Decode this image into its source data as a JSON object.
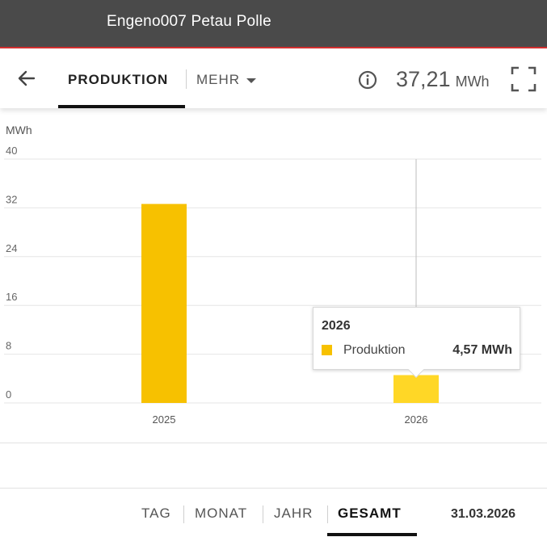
{
  "window": {
    "title": "Engeno007 Petau Polle"
  },
  "toolbar": {
    "back_icon": "arrow-left-icon",
    "tab_production": "PRODUKTION",
    "tab_more": "MEHR",
    "info_icon": "info-circle-icon",
    "total_value": "37,21",
    "total_unit": "MWh",
    "fullscreen_icon": "fullscreen-icon"
  },
  "chart_data": {
    "type": "bar",
    "ylabel": "MWh",
    "ylim": [
      0,
      40
    ],
    "yticks": [
      "0",
      "8",
      "16",
      "24",
      "32",
      "40"
    ],
    "categories": [
      "2025",
      "2026"
    ],
    "series": [
      {
        "name": "Produktion",
        "values": [
          32.64,
          4.57
        ]
      }
    ],
    "grid": true,
    "colors": {
      "bar": "#f7c100",
      "bar_hover": "#ffd726"
    }
  },
  "tooltip": {
    "title": "2026",
    "series_label": "Produktion",
    "value": "4,57 MWh"
  },
  "period_tabs": [
    {
      "label": "TAG",
      "active": false
    },
    {
      "label": "MONAT",
      "active": false
    },
    {
      "label": "JAHR",
      "active": false
    },
    {
      "label": "GESAMT",
      "active": true
    }
  ],
  "date": "31.03.2026"
}
